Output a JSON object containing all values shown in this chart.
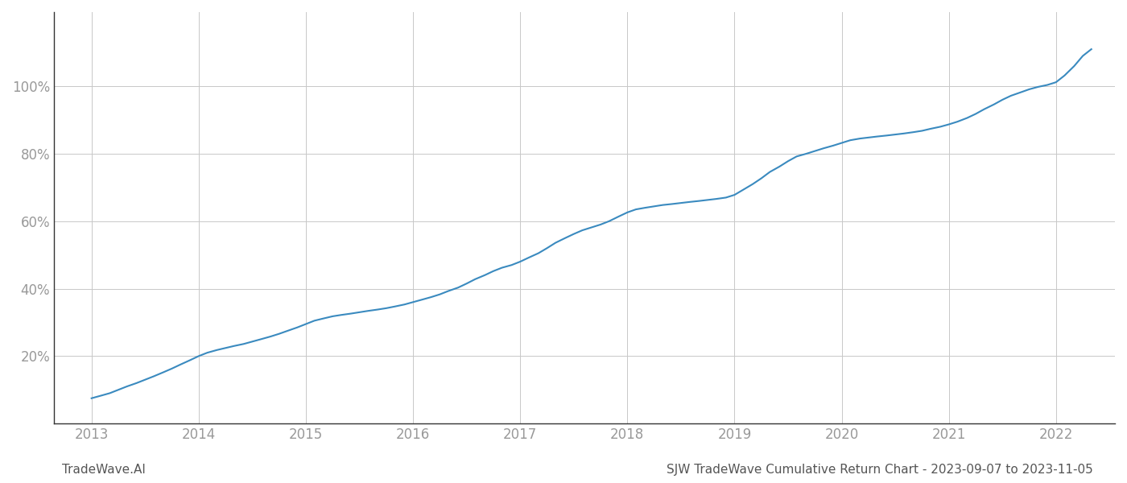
{
  "title": "SJW TradeWave Cumulative Return Chart - 2023-09-07 to 2023-11-05",
  "watermark": "TradeWave.AI",
  "line_color": "#3a8abf",
  "background_color": "#ffffff",
  "grid_color": "#c8c8c8",
  "yticks": [
    0.2,
    0.4,
    0.6,
    0.8,
    1.0
  ],
  "ytick_labels": [
    "20%",
    "40%",
    "60%",
    "80%",
    "100%"
  ],
  "xticks": [
    2013,
    2014,
    2015,
    2016,
    2017,
    2018,
    2019,
    2020,
    2021,
    2022
  ],
  "data_x": [
    2013.0,
    2013.08,
    2013.17,
    2013.25,
    2013.33,
    2013.42,
    2013.5,
    2013.58,
    2013.67,
    2013.75,
    2013.83,
    2013.92,
    2014.0,
    2014.08,
    2014.17,
    2014.25,
    2014.33,
    2014.42,
    2014.5,
    2014.58,
    2014.67,
    2014.75,
    2014.83,
    2014.92,
    2015.0,
    2015.08,
    2015.17,
    2015.25,
    2015.33,
    2015.42,
    2015.5,
    2015.58,
    2015.67,
    2015.75,
    2015.83,
    2015.92,
    2016.0,
    2016.08,
    2016.17,
    2016.25,
    2016.33,
    2016.42,
    2016.5,
    2016.58,
    2016.67,
    2016.75,
    2016.83,
    2016.92,
    2017.0,
    2017.08,
    2017.17,
    2017.25,
    2017.33,
    2017.42,
    2017.5,
    2017.58,
    2017.67,
    2017.75,
    2017.83,
    2017.92,
    2018.0,
    2018.08,
    2018.17,
    2018.25,
    2018.33,
    2018.42,
    2018.5,
    2018.58,
    2018.67,
    2018.75,
    2018.83,
    2018.92,
    2019.0,
    2019.08,
    2019.17,
    2019.25,
    2019.33,
    2019.42,
    2019.5,
    2019.58,
    2019.67,
    2019.75,
    2019.83,
    2019.92,
    2020.0,
    2020.08,
    2020.17,
    2020.25,
    2020.33,
    2020.42,
    2020.5,
    2020.58,
    2020.67,
    2020.75,
    2020.83,
    2020.92,
    2021.0,
    2021.08,
    2021.17,
    2021.25,
    2021.33,
    2021.42,
    2021.5,
    2021.58,
    2021.67,
    2021.75,
    2021.83,
    2021.92,
    2022.0,
    2022.08,
    2022.17,
    2022.25,
    2022.33
  ],
  "data_y": [
    0.075,
    0.082,
    0.09,
    0.1,
    0.11,
    0.12,
    0.13,
    0.14,
    0.152,
    0.163,
    0.175,
    0.188,
    0.2,
    0.21,
    0.218,
    0.224,
    0.23,
    0.236,
    0.243,
    0.25,
    0.258,
    0.266,
    0.275,
    0.285,
    0.295,
    0.305,
    0.312,
    0.318,
    0.322,
    0.326,
    0.33,
    0.334,
    0.338,
    0.342,
    0.347,
    0.353,
    0.36,
    0.367,
    0.375,
    0.383,
    0.393,
    0.403,
    0.415,
    0.428,
    0.44,
    0.452,
    0.462,
    0.47,
    0.48,
    0.492,
    0.505,
    0.52,
    0.536,
    0.55,
    0.562,
    0.573,
    0.582,
    0.59,
    0.6,
    0.614,
    0.626,
    0.635,
    0.64,
    0.644,
    0.648,
    0.651,
    0.654,
    0.657,
    0.66,
    0.663,
    0.666,
    0.67,
    0.678,
    0.693,
    0.71,
    0.727,
    0.746,
    0.762,
    0.778,
    0.792,
    0.8,
    0.808,
    0.816,
    0.824,
    0.832,
    0.84,
    0.845,
    0.848,
    0.851,
    0.854,
    0.857,
    0.86,
    0.864,
    0.868,
    0.874,
    0.88,
    0.887,
    0.895,
    0.906,
    0.918,
    0.932,
    0.946,
    0.96,
    0.972,
    0.982,
    0.991,
    0.998,
    1.004,
    1.012,
    1.032,
    1.06,
    1.09,
    1.11
  ],
  "ylim": [
    0.0,
    1.22
  ],
  "xlim": [
    2012.65,
    2022.55
  ],
  "line_width": 1.5,
  "tick_color": "#999999",
  "spine_color": "#333333",
  "title_color": "#555555",
  "watermark_color": "#555555",
  "title_fontsize": 11,
  "watermark_fontsize": 11,
  "tick_fontsize": 12
}
